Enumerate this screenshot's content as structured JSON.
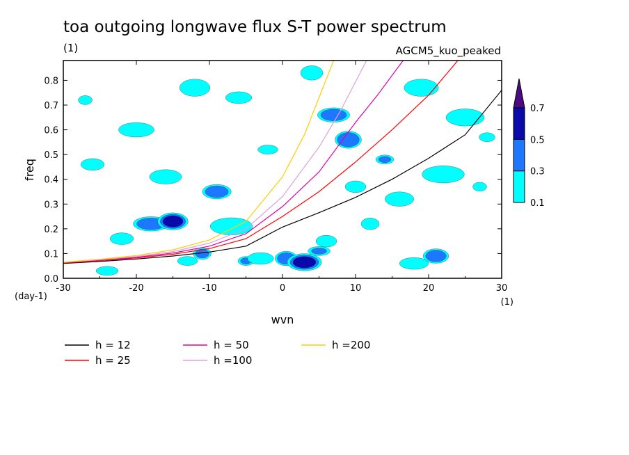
{
  "chart_data": {
    "type": "contour",
    "title": "toa outgoing longwave flux S-T power spectrum",
    "units_label": "(1)",
    "model_label": "AGCM5_kuo_peaked",
    "xlabel": "wvn",
    "ylabel": "freq",
    "x_unit_label": "(1)",
    "y_unit_label": "(day-1)",
    "xlim": [
      -30,
      30
    ],
    "ylim": [
      0,
      0.88
    ],
    "x_ticks": [
      -30,
      -20,
      -10,
      0,
      10,
      20,
      30
    ],
    "x_tick_labels": [
      "-30",
      "-20",
      "-10",
      "0",
      "10",
      "20",
      "30"
    ],
    "y_ticks": [
      0,
      0.1,
      0.2,
      0.3,
      0.4,
      0.5,
      0.6,
      0.7,
      0.8
    ],
    "y_tick_labels": [
      "0.0",
      "0.1",
      "0.2",
      "0.3",
      "0.4",
      "0.5",
      "0.6",
      "0.7",
      "0.8"
    ],
    "colorbar": {
      "levels": [
        0.1,
        0.3,
        0.5,
        0.7
      ],
      "level_labels": [
        "0.1",
        "0.3",
        "0.5",
        "0.7"
      ],
      "colors": [
        "#00ffff",
        "#1e78ff",
        "#0a0aaa",
        "#4b0a82"
      ]
    },
    "contour_patches": [
      {
        "x": -27,
        "y": 0.72,
        "level": 1
      },
      {
        "x": -22,
        "y": 0.16,
        "level": 1
      },
      {
        "x": -18,
        "y": 0.22,
        "level": 2
      },
      {
        "x": -15,
        "y": 0.23,
        "level": 3
      },
      {
        "x": -13,
        "y": 0.07,
        "level": 1
      },
      {
        "x": -11,
        "y": 0.1,
        "level": 2
      },
      {
        "x": -9,
        "y": 0.35,
        "level": 2
      },
      {
        "x": -7,
        "y": 0.21,
        "level": 1
      },
      {
        "x": -5,
        "y": 0.07,
        "level": 2
      },
      {
        "x": -3,
        "y": 0.08,
        "level": 1
      },
      {
        "x": 0.5,
        "y": 0.08,
        "level": 2
      },
      {
        "x": 3,
        "y": 0.065,
        "level": 3
      },
      {
        "x": 5,
        "y": 0.11,
        "level": 2
      },
      {
        "x": 6,
        "y": 0.15,
        "level": 1
      },
      {
        "x": 7,
        "y": 0.66,
        "level": 2
      },
      {
        "x": 9,
        "y": 0.56,
        "level": 2
      },
      {
        "x": 14,
        "y": 0.48,
        "level": 2
      },
      {
        "x": 18,
        "y": 0.06,
        "level": 1
      },
      {
        "x": 21,
        "y": 0.09,
        "level": 2
      },
      {
        "x": 25,
        "y": 0.65,
        "level": 1
      },
      {
        "x": 27,
        "y": 0.37,
        "level": 1
      },
      {
        "x": -26,
        "y": 0.46,
        "level": 1
      },
      {
        "x": -20,
        "y": 0.6,
        "level": 1
      },
      {
        "x": -12,
        "y": 0.77,
        "level": 1
      },
      {
        "x": -2,
        "y": 0.52,
        "level": 1
      },
      {
        "x": 12,
        "y": 0.22,
        "level": 1
      },
      {
        "x": 16,
        "y": 0.32,
        "level": 1
      },
      {
        "x": 22,
        "y": 0.42,
        "level": 1
      },
      {
        "x": 28,
        "y": 0.57,
        "level": 1
      },
      {
        "x": -6,
        "y": 0.73,
        "level": 1
      },
      {
        "x": 4,
        "y": 0.83,
        "level": 1
      },
      {
        "x": 19,
        "y": 0.77,
        "level": 1
      },
      {
        "x": -24,
        "y": 0.03,
        "level": 1
      },
      {
        "x": 10,
        "y": 0.37,
        "level": 1
      },
      {
        "x": -16,
        "y": 0.41,
        "level": 1
      }
    ],
    "series": [
      {
        "name": "h = 12",
        "h": 12,
        "color": "#000000",
        "x": [
          -30,
          -25,
          -20,
          -15,
          -10,
          -5,
          0,
          5,
          10,
          15,
          20,
          25,
          30
        ],
        "y": [
          0.06,
          0.068,
          0.078,
          0.09,
          0.106,
          0.13,
          0.207,
          0.265,
          0.327,
          0.4,
          0.485,
          0.58,
          0.76
        ]
      },
      {
        "name": "h = 25",
        "h": 25,
        "color": "#ff0000",
        "x": [
          -30,
          -25,
          -20,
          -15,
          -10,
          -5,
          0,
          5,
          10,
          15,
          20,
          24
        ],
        "y": [
          0.062,
          0.071,
          0.082,
          0.097,
          0.12,
          0.16,
          0.25,
          0.35,
          0.47,
          0.6,
          0.74,
          0.88
        ]
      },
      {
        "name": "h = 50",
        "h": 50,
        "color": "#dd00aa",
        "x": [
          -30,
          -25,
          -20,
          -15,
          -10,
          -5,
          0,
          5,
          10,
          13,
          16.5
        ],
        "y": [
          0.063,
          0.073,
          0.085,
          0.102,
          0.13,
          0.18,
          0.29,
          0.43,
          0.63,
          0.74,
          0.88
        ]
      },
      {
        "name": "h =100",
        "h": 100,
        "color": "#dda0dd",
        "x": [
          -30,
          -25,
          -20,
          -15,
          -10,
          -5,
          0,
          5,
          8,
          11.5
        ],
        "y": [
          0.064,
          0.075,
          0.088,
          0.108,
          0.142,
          0.2,
          0.33,
          0.53,
          0.68,
          0.88
        ]
      },
      {
        "name": "h =200",
        "h": 200,
        "color": "#ffcc00",
        "x": [
          -30,
          -25,
          -20,
          -15,
          -10,
          -5,
          0,
          3,
          5,
          7
        ],
        "y": [
          0.065,
          0.077,
          0.092,
          0.115,
          0.155,
          0.23,
          0.41,
          0.58,
          0.73,
          0.88
        ]
      }
    ]
  }
}
